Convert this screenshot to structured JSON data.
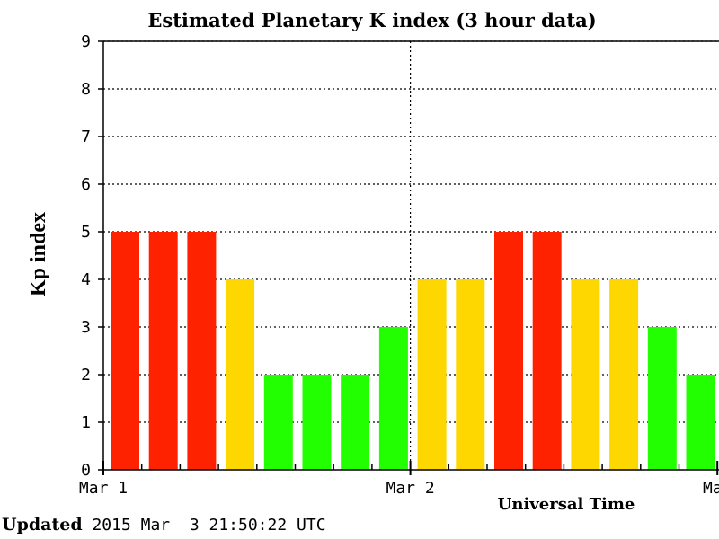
{
  "chart_data": {
    "type": "bar",
    "title": "Estimated Planetary K index (3 hour data)",
    "xlabel": "Universal Time",
    "ylabel": "Kp index",
    "ylim": [
      0,
      9
    ],
    "yticks": [
      "0",
      "1",
      "2",
      "3",
      "4",
      "5",
      "6",
      "7",
      "8",
      "9"
    ],
    "xtick_labels": [
      "Mar 1",
      "Mar 2",
      "Mar"
    ],
    "grid": true,
    "values": [
      5,
      5,
      5,
      4,
      2,
      2,
      2,
      3,
      4,
      4,
      5,
      5,
      4,
      4,
      3,
      2
    ],
    "colors": {
      "low": "#22ff00",
      "mid": "#ffd700",
      "high": "#ff2200"
    }
  },
  "footer": {
    "lead": "Updated",
    "text": " 2015 Mar  3 21:50:22 UTC"
  }
}
